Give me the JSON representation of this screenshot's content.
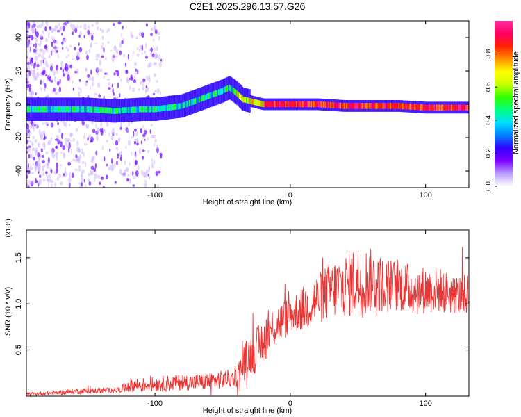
{
  "chart_data": [
    {
      "type": "heatmap",
      "title": "C2E1.2025.296.13.57.G26",
      "xlabel": "Height of straight line (km)",
      "ylabel": "Frequency (Hz)",
      "xlim": [
        -195,
        132
      ],
      "ylim": [
        -50,
        50
      ],
      "xticks": [
        -100,
        0,
        100
      ],
      "yticks": [
        -40,
        -20,
        0,
        20,
        40
      ],
      "colorbar": {
        "label": "Normalized spectral amplitude",
        "range": [
          0,
          1
        ],
        "ticks": [
          0.0,
          0.2,
          0.4,
          0.6,
          0.8
        ],
        "tick_labels": [
          "0.0",
          "0.2",
          "0.4",
          "0.6",
          "0.8"
        ],
        "colormap": [
          "#ffffff",
          "#b89cff",
          "#7f00ff",
          "#3200ff",
          "#0080ff",
          "#00e0ff",
          "#00ff80",
          "#30ff00",
          "#c8ff00",
          "#ffff00",
          "#ff9000",
          "#ff2000",
          "#ff0060",
          "#ff2da0"
        ]
      },
      "ridge": {
        "x": [
          -195,
          -170,
          -150,
          -130,
          -110,
          -100,
          -90,
          -80,
          -70,
          -60,
          -50,
          -45,
          -40,
          -35,
          -30,
          -25,
          -20,
          -10,
          0,
          20,
          40,
          60,
          80,
          100,
          120,
          132
        ],
        "y": [
          -3,
          -3,
          -3,
          -4,
          -3,
          -3,
          -2,
          -1,
          2,
          5,
          8,
          10,
          7,
          3,
          2,
          1,
          0,
          0,
          0,
          0,
          -1,
          -1,
          -1,
          -2,
          -2,
          -2
        ]
      }
    },
    {
      "type": "line",
      "xlabel": "Height of straight line (km)",
      "ylabel": "SNR (10 * v/v)",
      "y_multiplier": "(x10⁴)",
      "xlim": [
        -195,
        132
      ],
      "ylim": [
        0,
        1.8
      ],
      "xticks": [
        -100,
        0,
        100
      ],
      "yticks": [
        0.5,
        1.0,
        1.5
      ],
      "ytick_labels": [
        "0.5",
        "1.0",
        "1.5"
      ],
      "series": [
        {
          "name": "SNR",
          "color": "#ee3333",
          "envelope_x": [
            -195,
            -180,
            -160,
            -140,
            -125,
            -120,
            -110,
            -100,
            -90,
            -80,
            -70,
            -60,
            -50,
            -40,
            -35,
            -30,
            -25,
            -20,
            -15,
            -10,
            -5,
            0,
            10,
            20,
            30,
            40,
            50,
            60,
            70,
            80,
            90,
            100,
            110,
            120,
            132
          ],
          "envelope_mean": [
            0.02,
            0.03,
            0.05,
            0.06,
            0.07,
            0.12,
            0.12,
            0.13,
            0.14,
            0.15,
            0.15,
            0.16,
            0.18,
            0.2,
            0.35,
            0.45,
            0.5,
            0.6,
            0.7,
            0.78,
            0.82,
            0.88,
            0.95,
            1.05,
            1.15,
            1.2,
            1.25,
            1.25,
            1.2,
            1.2,
            1.15,
            1.15,
            1.15,
            1.1,
            1.1
          ],
          "envelope_spread": [
            0.02,
            0.02,
            0.03,
            0.03,
            0.03,
            0.08,
            0.08,
            0.08,
            0.09,
            0.09,
            0.09,
            0.1,
            0.1,
            0.1,
            0.2,
            0.22,
            0.25,
            0.25,
            0.25,
            0.22,
            0.22,
            0.2,
            0.25,
            0.28,
            0.32,
            0.35,
            0.4,
            0.35,
            0.3,
            0.28,
            0.28,
            0.26,
            0.25,
            0.22,
            0.22
          ]
        }
      ]
    }
  ]
}
